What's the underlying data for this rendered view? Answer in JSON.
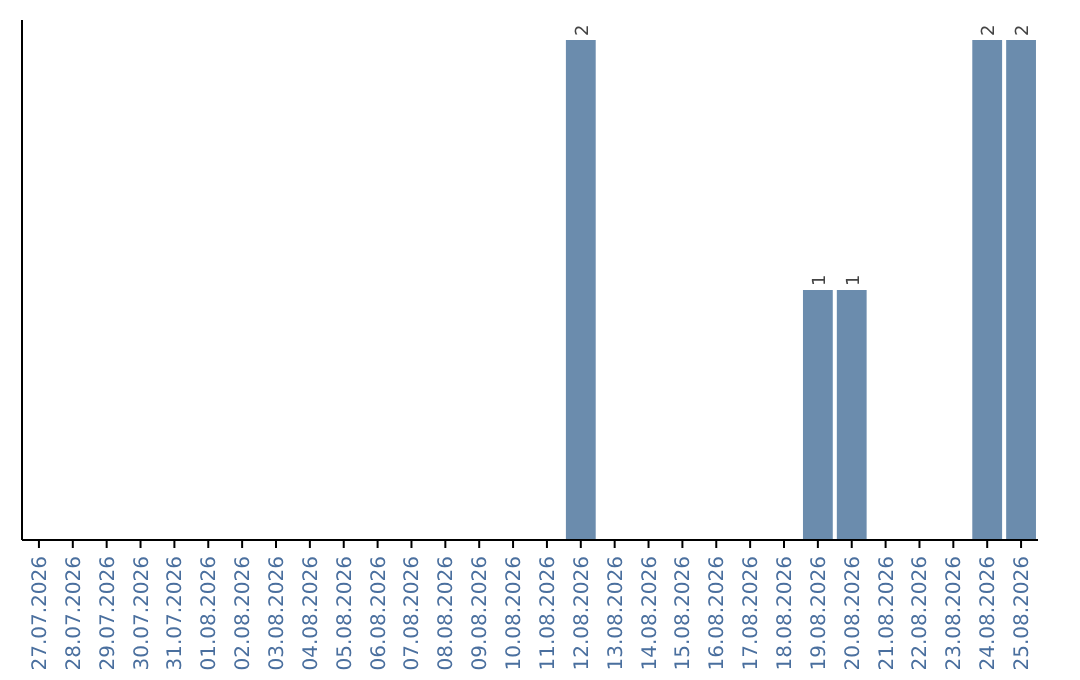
{
  "chart_data": {
    "type": "bar",
    "categories": [
      "27.07.2026",
      "28.07.2026",
      "29.07.2026",
      "30.07.2026",
      "31.07.2026",
      "01.08.2026",
      "02.08.2026",
      "03.08.2026",
      "04.08.2026",
      "05.08.2026",
      "06.08.2026",
      "07.08.2026",
      "08.08.2026",
      "09.08.2026",
      "10.08.2026",
      "11.08.2026",
      "12.08.2026",
      "13.08.2026",
      "14.08.2026",
      "15.08.2026",
      "16.08.2026",
      "17.08.2026",
      "18.08.2026",
      "19.08.2026",
      "20.08.2026",
      "21.08.2026",
      "22.08.2026",
      "23.08.2026",
      "24.08.2026",
      "25.08.2026"
    ],
    "values": [
      null,
      null,
      null,
      null,
      null,
      null,
      null,
      null,
      null,
      null,
      null,
      null,
      null,
      null,
      null,
      null,
      2,
      null,
      null,
      null,
      null,
      null,
      null,
      1,
      1,
      null,
      null,
      null,
      2,
      2
    ],
    "data_labels": true,
    "color": "#6b8cad"
  }
}
